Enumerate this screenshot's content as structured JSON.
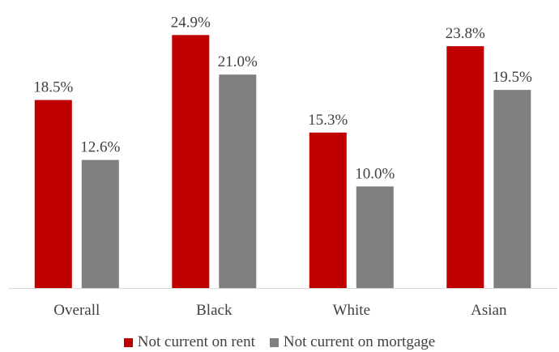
{
  "chart_data": {
    "type": "bar",
    "title": "",
    "xlabel": "",
    "ylabel": "",
    "categories": [
      "Overall",
      "Black",
      "White",
      "Asian"
    ],
    "series": [
      {
        "name": "Not current on rent",
        "values": [
          18.5,
          24.9,
          15.3,
          23.8
        ],
        "labels": [
          "18.5%",
          "24.9%",
          "15.3%",
          "23.8%"
        ],
        "color": "#C00000"
      },
      {
        "name": "Not current on mortgage",
        "values": [
          12.6,
          21.0,
          10.0,
          19.5
        ],
        "labels": [
          "12.6%",
          "21.0%",
          "10.0%",
          "19.5%"
        ],
        "color": "#7F7F7F"
      }
    ],
    "ylim": [
      0,
      25
    ],
    "grid": false,
    "legend_position": "bottom"
  }
}
